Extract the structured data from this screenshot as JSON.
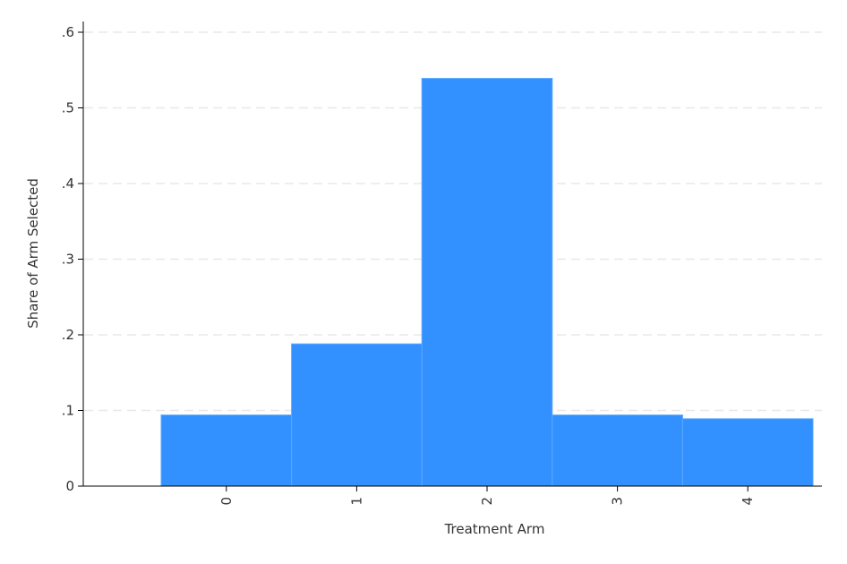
{
  "chart_data": {
    "type": "bar",
    "categories": [
      "0",
      "1",
      "2",
      "3",
      "4"
    ],
    "values": [
      0.094,
      0.188,
      0.539,
      0.094,
      0.089
    ],
    "title": "",
    "xlabel": "Treatment Arm",
    "ylabel": "Share of Arm Selected",
    "ylim": [
      0,
      0.6
    ],
    "yticks": [
      0,
      0.1,
      0.2,
      0.3,
      0.4,
      0.5,
      0.6
    ],
    "ytick_labels": [
      "0",
      ".1",
      ".2",
      ".3",
      ".4",
      ".5",
      ".6"
    ],
    "grid": true,
    "legend": "none",
    "bar_color": "#3390ff"
  }
}
